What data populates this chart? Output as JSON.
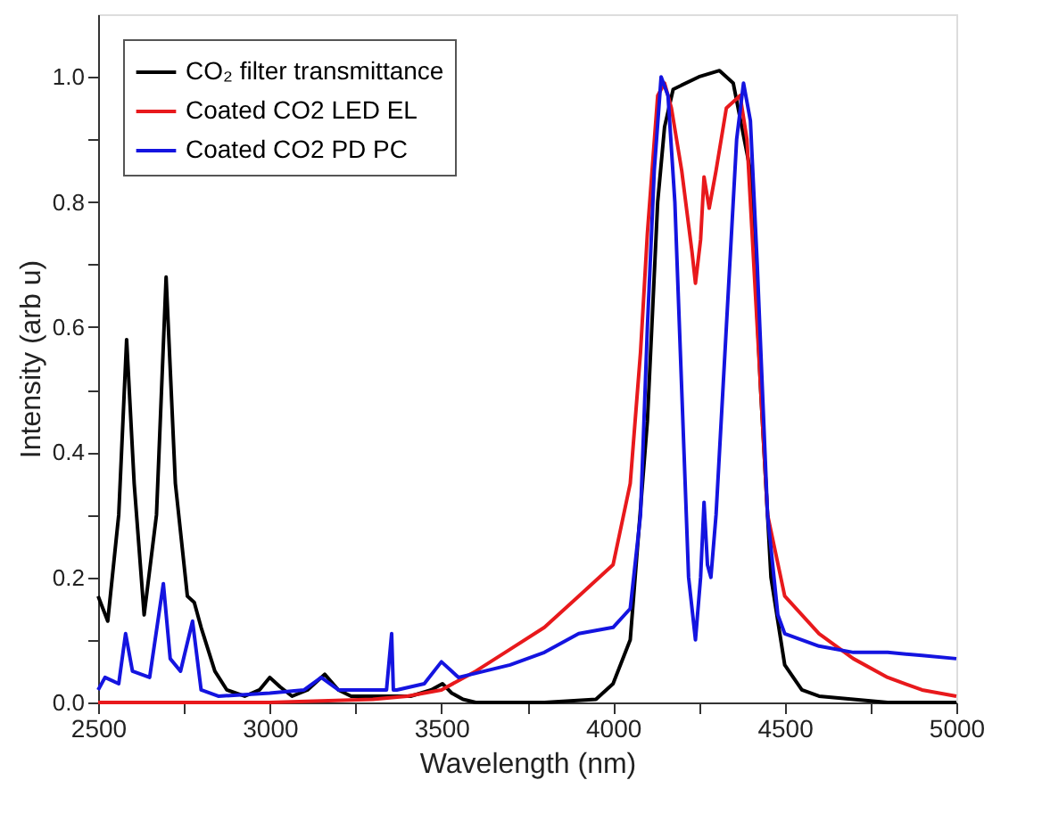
{
  "chart_data": {
    "type": "line",
    "xlabel": "Wavelength (nm)",
    "ylabel": "Intensity (arb u)",
    "xlim": [
      2500,
      5000
    ],
    "ylim": [
      0,
      1.1
    ],
    "xticks": [
      2500,
      {
        "value": 2750,
        "label": null
      },
      3000,
      {
        "value": 3250,
        "label": null
      },
      3500,
      {
        "value": 3750,
        "label": null
      },
      4000,
      {
        "value": 4250,
        "label": null
      },
      4500,
      {
        "value": 4750,
        "label": null
      },
      5000
    ],
    "yticks": [
      {
        "value": 0,
        "label": "0.0"
      },
      {
        "value": 0.1,
        "label": null
      },
      0.2,
      {
        "value": 0.3,
        "label": null
      },
      0.4,
      {
        "value": 0.5,
        "label": null
      },
      0.6,
      {
        "value": 0.7,
        "label": null
      },
      0.8,
      {
        "value": 0.9,
        "label": null
      },
      {
        "value": 1,
        "label": "1.0"
      }
    ],
    "grid": false,
    "legend": "top left",
    "marker": "none",
    "line_style": "solid",
    "series": [
      {
        "name": "CO₂ filter transmittance",
        "color": "#000000",
        "x": [
          2500,
          2528,
          2560,
          2583,
          2605,
          2634,
          2670,
          2698,
          2725,
          2760,
          2780,
          2800,
          2840,
          2875,
          2927,
          2970,
          3000,
          3030,
          3065,
          3110,
          3160,
          3200,
          3237,
          3410,
          3470,
          3503,
          3530,
          3563,
          3600,
          3800,
          3950,
          4000,
          4050,
          4100,
          4130,
          4150,
          4175,
          4250,
          4310,
          4350,
          4400,
          4430,
          4460,
          4500,
          4550,
          4600,
          4800,
          5000
        ],
        "values": [
          0.17,
          0.13,
          0.3,
          0.58,
          0.35,
          0.14,
          0.3,
          0.68,
          0.35,
          0.17,
          0.16,
          0.12,
          0.05,
          0.02,
          0.01,
          0.02,
          0.04,
          0.025,
          0.01,
          0.02,
          0.045,
          0.02,
          0.01,
          0.01,
          0.02,
          0.03,
          0.015,
          0.005,
          0.0,
          0.0,
          0.005,
          0.03,
          0.1,
          0.45,
          0.8,
          0.92,
          0.98,
          1.0,
          1.01,
          0.99,
          0.85,
          0.5,
          0.2,
          0.06,
          0.02,
          0.01,
          0.0,
          0.0
        ]
      },
      {
        "name": "Coated CO2 LED EL",
        "color": "#e8191c",
        "x": [
          2500,
          3000,
          3300,
          3400,
          3500,
          3600,
          3700,
          3800,
          3900,
          4000,
          4050,
          4080,
          4100,
          4130,
          4150,
          4170,
          4200,
          4230,
          4240,
          4255,
          4265,
          4280,
          4300,
          4330,
          4370,
          4390,
          4420,
          4450,
          4500,
          4600,
          4700,
          4800,
          4900,
          5000
        ],
        "values": [
          0.0,
          0.0,
          0.005,
          0.01,
          0.02,
          0.05,
          0.085,
          0.12,
          0.17,
          0.22,
          0.35,
          0.56,
          0.75,
          0.97,
          0.99,
          0.95,
          0.85,
          0.72,
          0.67,
          0.74,
          0.84,
          0.79,
          0.85,
          0.95,
          0.97,
          0.9,
          0.6,
          0.3,
          0.17,
          0.11,
          0.07,
          0.04,
          0.02,
          0.01
        ]
      },
      {
        "name": "Coated CO2 PD PC",
        "color": "#1414e0",
        "x": [
          2500,
          2520,
          2560,
          2580,
          2600,
          2650,
          2690,
          2710,
          2740,
          2775,
          2800,
          2850,
          3000,
          3100,
          3150,
          3200,
          3340,
          3355,
          3360,
          3370,
          3450,
          3500,
          3550,
          3700,
          3800,
          3900,
          4000,
          4050,
          4080,
          4100,
          4120,
          4140,
          4160,
          4180,
          4200,
          4220,
          4240,
          4255,
          4265,
          4275,
          4285,
          4300,
          4330,
          4360,
          4380,
          4400,
          4420,
          4450,
          4480,
          4500,
          4600,
          4700,
          4800,
          4900,
          5000
        ],
        "values": [
          0.02,
          0.04,
          0.03,
          0.11,
          0.05,
          0.04,
          0.19,
          0.07,
          0.05,
          0.13,
          0.02,
          0.01,
          0.015,
          0.02,
          0.04,
          0.02,
          0.02,
          0.11,
          0.02,
          0.02,
          0.03,
          0.065,
          0.04,
          0.06,
          0.08,
          0.11,
          0.12,
          0.15,
          0.3,
          0.6,
          0.85,
          1.0,
          0.97,
          0.8,
          0.5,
          0.2,
          0.1,
          0.2,
          0.32,
          0.22,
          0.2,
          0.3,
          0.6,
          0.9,
          0.99,
          0.93,
          0.7,
          0.3,
          0.14,
          0.11,
          0.09,
          0.08,
          0.08,
          0.075,
          0.07
        ]
      }
    ]
  }
}
